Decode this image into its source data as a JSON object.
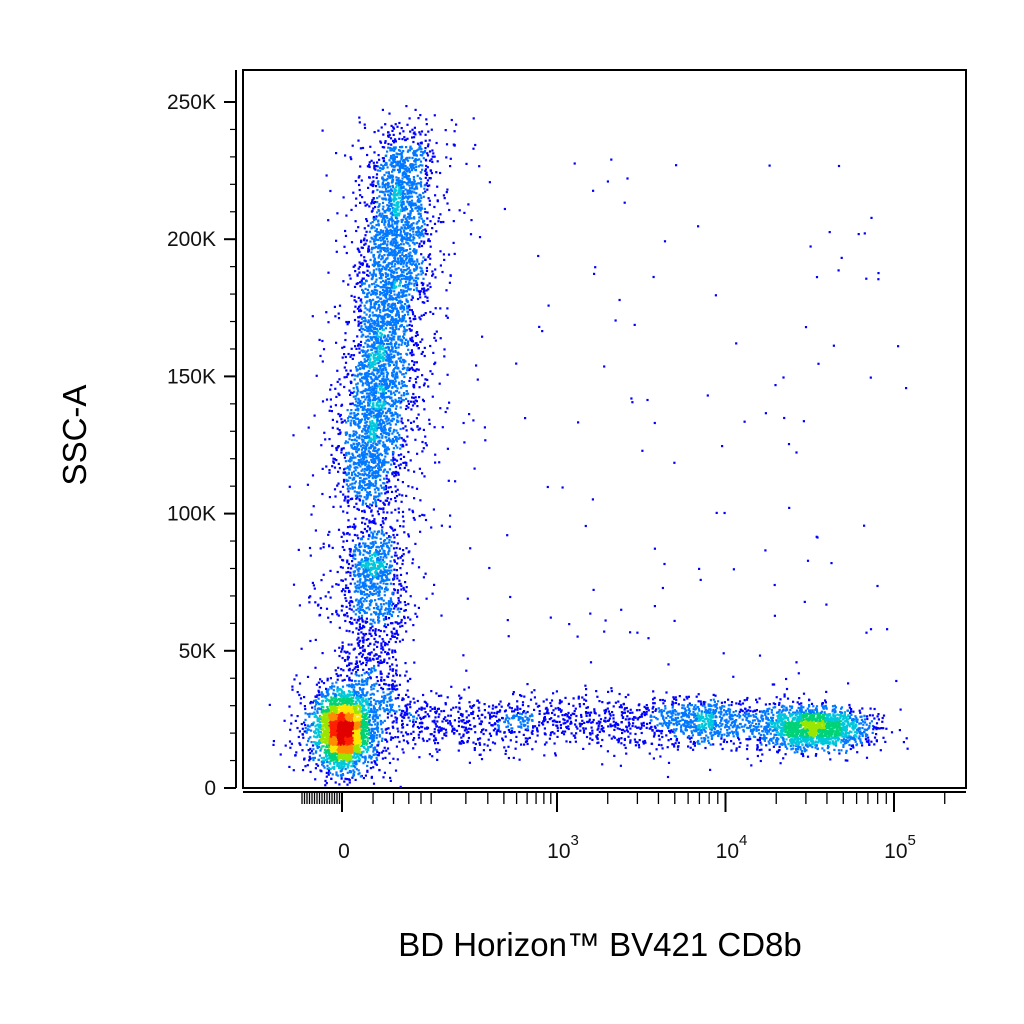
{
  "chart_data": {
    "type": "scatter",
    "style": "density-colored flow cytometry dot plot",
    "title": "",
    "xlabel": "BD Horizon™ BV421 CD8b",
    "ylabel": "SSC-A",
    "x_scale": "biexponential (linear near zero, logarithmic above ~10^3)",
    "y_scale": "linear",
    "ylim": [
      0,
      262144
    ],
    "xlim": [
      -500,
      200000
    ],
    "x_ticks": [
      {
        "value": 0,
        "label": "0"
      },
      {
        "value": 1000,
        "label": "10",
        "exp": "3"
      },
      {
        "value": 10000,
        "label": "10",
        "exp": "4"
      },
      {
        "value": 100000,
        "label": "10",
        "exp": "5"
      }
    ],
    "y_ticks": [
      {
        "value": 0,
        "label": "0"
      },
      {
        "value": 50000,
        "label": "50K"
      },
      {
        "value": 100000,
        "label": "100K"
      },
      {
        "value": 150000,
        "label": "150K"
      },
      {
        "value": 200000,
        "label": "200K"
      },
      {
        "value": 250000,
        "label": "250K"
      }
    ],
    "density_colors": [
      "#0000ff",
      "#0078ff",
      "#00c8dc",
      "#00d278",
      "#9be600",
      "#ffe600",
      "#ff8c00",
      "#ff2000",
      "#e00000"
    ],
    "populations": [
      {
        "name": "CD8b-negative low-SSC cluster",
        "x_center": 0,
        "y_center": 21000,
        "x_spread": "narrow",
        "y_spread": 6000,
        "relative_density": "highest"
      },
      {
        "name": "CD8b-negative high-SSC population",
        "x_center": 120,
        "y_center": 170000,
        "y_range": [
          60000,
          245000
        ],
        "relative_density": "high"
      },
      {
        "name": "CD8b-dim to positive low-SSC tail",
        "x_range": [
          300,
          80000
        ],
        "y_center": 25000,
        "relative_density": "low"
      },
      {
        "name": "CD8b-positive cluster",
        "x_center": 30000,
        "y_center": 21000,
        "relative_density": "medium"
      }
    ],
    "grid": false,
    "legend": "none"
  }
}
